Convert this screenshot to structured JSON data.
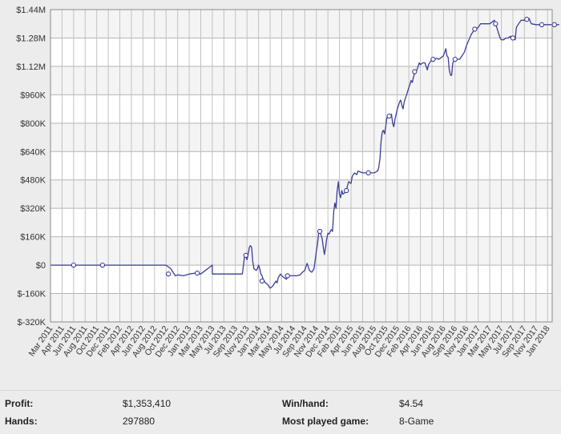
{
  "chart_data": {
    "type": "line",
    "ylim": [
      -320000,
      1440000
    ],
    "y_ticks": [
      {
        "value": 1440000,
        "label": "$1.44M"
      },
      {
        "value": 1280000,
        "label": "$1.28M"
      },
      {
        "value": 1120000,
        "label": "$1.12M"
      },
      {
        "value": 960000,
        "label": "$960K"
      },
      {
        "value": 800000,
        "label": "$800K"
      },
      {
        "value": 640000,
        "label": "$640K"
      },
      {
        "value": 480000,
        "label": "$480K"
      },
      {
        "value": 320000,
        "label": "$320K"
      },
      {
        "value": 160000,
        "label": "$160K"
      },
      {
        "value": 0,
        "label": "$0"
      },
      {
        "value": -160000,
        "label": "$-160K"
      },
      {
        "value": -320000,
        "label": "$-320K"
      }
    ],
    "x_ticks": [
      "Mar 2011",
      "Apr 2011",
      "Jun 2011",
      "Aug 2011",
      "Oct 2011",
      "Dec 2011",
      "Feb 2012",
      "Apr 2012",
      "Jun 2012",
      "Aug 2012",
      "Oct 2012",
      "Dec 2012",
      "Jan 2013",
      "Mar 2013",
      "May 2013",
      "Jul 2013",
      "Sep 2013",
      "Nov 2013",
      "Jan 2014",
      "Mar 2014",
      "May 2014",
      "Jul 2014",
      "Sep 2014",
      "Nov 2014",
      "Dec 2014",
      "Feb 2015",
      "Apr 2015",
      "Jun 2015",
      "Aug 2015",
      "Oct 2015",
      "Dec 2015",
      "Feb 2016",
      "Apr 2016",
      "Jun 2016",
      "Aug 2016",
      "Sep 2016",
      "Nov 2016",
      "Jan 2017",
      "Mar 2017",
      "May 2017",
      "Jul 2017",
      "Sep 2017",
      "Nov 2017",
      "Jan 2018"
    ],
    "grid": true,
    "series": [
      {
        "color": "#3a3d99",
        "points": [
          [
            0,
            0
          ],
          [
            14,
            0
          ],
          [
            4,
            0
          ],
          [
            8,
            0
          ],
          [
            9,
            0
          ],
          [
            9.5,
            0
          ],
          [
            10,
            0
          ],
          [
            10.4,
            -20000
          ],
          [
            10.6,
            -40000
          ],
          [
            10.8,
            -60000
          ],
          [
            11,
            -55000
          ],
          [
            11.5,
            -60000
          ],
          [
            12,
            -50000
          ],
          [
            12.5,
            -45000
          ],
          [
            13,
            -50000
          ],
          [
            14,
            -50000
          ],
          [
            15,
            -50000
          ],
          [
            16,
            -50000
          ],
          [
            16.6,
            -50000
          ],
          [
            16.8,
            55000
          ],
          [
            16.9,
            50000
          ],
          [
            17,
            30000
          ],
          [
            17.1,
            60000
          ],
          [
            17.2,
            100000
          ],
          [
            17.3,
            110000
          ],
          [
            17.4,
            100000
          ],
          [
            17.5,
            20000
          ],
          [
            17.6,
            -20000
          ],
          [
            17.8,
            -30000
          ],
          [
            17.9,
            -20000
          ],
          [
            18,
            0
          ],
          [
            18.1,
            -20000
          ],
          [
            18.2,
            -50000
          ],
          [
            18.3,
            -60000
          ],
          [
            18.4,
            -80000
          ],
          [
            18.5,
            -90000
          ],
          [
            18.6,
            -100000
          ],
          [
            18.8,
            -110000
          ],
          [
            18.9,
            -120000
          ],
          [
            19,
            -130000
          ],
          [
            19.2,
            -120000
          ],
          [
            19.3,
            -110000
          ],
          [
            19.5,
            -90000
          ],
          [
            19.6,
            -100000
          ],
          [
            19.7,
            -70000
          ],
          [
            19.8,
            -60000
          ],
          [
            19.9,
            -50000
          ],
          [
            20,
            -60000
          ],
          [
            20.2,
            -70000
          ],
          [
            20.4,
            -80000
          ],
          [
            20.6,
            -60000
          ],
          [
            21,
            -60000
          ],
          [
            21.3,
            -60000
          ],
          [
            21.6,
            -55000
          ],
          [
            21.8,
            -40000
          ],
          [
            22,
            -30000
          ],
          [
            22.2,
            10000
          ],
          [
            22.3,
            -10000
          ],
          [
            22.4,
            -30000
          ],
          [
            22.6,
            -40000
          ],
          [
            22.8,
            -20000
          ],
          [
            23,
            80000
          ],
          [
            23.1,
            120000
          ],
          [
            23.2,
            180000
          ],
          [
            23.3,
            190000
          ],
          [
            23.4,
            170000
          ],
          [
            23.5,
            150000
          ],
          [
            23.6,
            100000
          ],
          [
            23.7,
            60000
          ],
          [
            23.8,
            100000
          ],
          [
            23.9,
            150000
          ],
          [
            24,
            180000
          ],
          [
            24.1,
            175000
          ],
          [
            24.2,
            190000
          ],
          [
            24.3,
            200000
          ],
          [
            24.4,
            190000
          ],
          [
            24.5,
            300000
          ],
          [
            24.6,
            350000
          ],
          [
            24.7,
            320000
          ],
          [
            24.8,
            420000
          ],
          [
            24.9,
            470000
          ],
          [
            25,
            400000
          ],
          [
            25.1,
            380000
          ],
          [
            25.2,
            420000
          ],
          [
            25.3,
            400000
          ],
          [
            25.5,
            410000
          ],
          [
            25.6,
            420000
          ],
          [
            25.7,
            450000
          ],
          [
            25.8,
            470000
          ],
          [
            26,
            460000
          ],
          [
            26.1,
            500000
          ],
          [
            26.3,
            520000
          ],
          [
            26.5,
            510000
          ],
          [
            26.6,
            530000
          ],
          [
            27,
            520000
          ],
          [
            27.5,
            520000
          ],
          [
            28,
            520000
          ],
          [
            28.3,
            530000
          ],
          [
            28.4,
            550000
          ],
          [
            28.5,
            600000
          ],
          [
            28.6,
            700000
          ],
          [
            28.7,
            750000
          ],
          [
            28.8,
            760000
          ],
          [
            28.9,
            740000
          ],
          [
            29,
            780000
          ],
          [
            29.1,
            830000
          ],
          [
            29.3,
            840000
          ],
          [
            29.5,
            850000
          ],
          [
            29.6,
            800000
          ],
          [
            29.7,
            780000
          ],
          [
            29.8,
            820000
          ],
          [
            29.9,
            850000
          ],
          [
            30,
            880000
          ],
          [
            30.1,
            900000
          ],
          [
            30.2,
            920000
          ],
          [
            30.3,
            930000
          ],
          [
            30.4,
            900000
          ],
          [
            30.5,
            880000
          ],
          [
            30.6,
            920000
          ],
          [
            30.7,
            940000
          ],
          [
            30.8,
            960000
          ],
          [
            30.9,
            980000
          ],
          [
            31,
            1000000
          ],
          [
            31.1,
            1020000
          ],
          [
            31.2,
            1040000
          ],
          [
            31.3,
            1030000
          ],
          [
            31.4,
            1060000
          ],
          [
            31.5,
            1080000
          ],
          [
            31.6,
            1090000
          ],
          [
            31.7,
            1100000
          ],
          [
            31.8,
            1120000
          ],
          [
            31.9,
            1140000
          ],
          [
            32,
            1130000
          ],
          [
            32.2,
            1140000
          ],
          [
            32.4,
            1140000
          ],
          [
            32.6,
            1100000
          ],
          [
            32.7,
            1130000
          ],
          [
            32.9,
            1150000
          ],
          [
            33,
            1160000
          ],
          [
            33.2,
            1160000
          ],
          [
            33.4,
            1165000
          ],
          [
            33.6,
            1160000
          ],
          [
            33.8,
            1170000
          ],
          [
            34,
            1180000
          ],
          [
            34.1,
            1200000
          ],
          [
            34.2,
            1220000
          ],
          [
            34.3,
            1180000
          ],
          [
            34.4,
            1170000
          ],
          [
            34.5,
            1100000
          ],
          [
            34.6,
            1070000
          ],
          [
            34.7,
            1070000
          ],
          [
            34.8,
            1140000
          ],
          [
            34.9,
            1150000
          ],
          [
            35,
            1160000
          ],
          [
            35.2,
            1160000
          ],
          [
            35.4,
            1160000
          ],
          [
            35.6,
            1180000
          ],
          [
            35.8,
            1200000
          ],
          [
            36,
            1240000
          ],
          [
            36.2,
            1270000
          ],
          [
            36.4,
            1300000
          ],
          [
            36.6,
            1320000
          ],
          [
            36.8,
            1330000
          ],
          [
            37,
            1340000
          ],
          [
            37.2,
            1360000
          ],
          [
            37.4,
            1360000
          ],
          [
            37.6,
            1360000
          ],
          [
            37.8,
            1360000
          ],
          [
            38,
            1360000
          ],
          [
            38.2,
            1370000
          ],
          [
            38.4,
            1380000
          ],
          [
            38.5,
            1360000
          ],
          [
            38.6,
            1340000
          ],
          [
            38.7,
            1320000
          ],
          [
            38.8,
            1300000
          ],
          [
            38.9,
            1280000
          ],
          [
            39,
            1270000
          ],
          [
            39.2,
            1270000
          ],
          [
            39.4,
            1280000
          ],
          [
            39.6,
            1280000
          ],
          [
            39.8,
            1290000
          ],
          [
            40,
            1280000
          ],
          [
            40.2,
            1270000
          ],
          [
            40.3,
            1340000
          ],
          [
            40.5,
            1360000
          ],
          [
            40.7,
            1380000
          ],
          [
            41,
            1380000
          ],
          [
            41.2,
            1385000
          ],
          [
            41.4,
            1390000
          ],
          [
            41.6,
            1360000
          ],
          [
            42,
            1355000
          ],
          [
            42.5,
            1355000
          ],
          [
            43,
            1355000
          ],
          [
            43.5,
            1355000
          ],
          [
            44,
            1355000
          ]
        ],
        "markers": [
          [
            2,
            0
          ],
          [
            4.5,
            0
          ],
          [
            10.2,
            -50000
          ],
          [
            12.7,
            -45000
          ],
          [
            16.9,
            55000
          ],
          [
            18.3,
            -90000
          ],
          [
            20.5,
            -60000
          ],
          [
            23.3,
            190000
          ],
          [
            25.6,
            420000
          ],
          [
            27.5,
            520000
          ],
          [
            29.3,
            840000
          ],
          [
            31.5,
            1090000
          ],
          [
            33.1,
            1160000
          ],
          [
            35,
            1160000
          ],
          [
            36.7,
            1330000
          ],
          [
            38.5,
            1360000
          ],
          [
            40,
            1280000
          ],
          [
            41.2,
            1385000
          ],
          [
            42.5,
            1355000
          ],
          [
            43.6,
            1355000
          ]
        ]
      }
    ]
  },
  "stats": {
    "profit_label": "Profit:",
    "profit_value": "$1,353,410",
    "hands_label": "Hands:",
    "hands_value": "297880",
    "winhand_label": "Win/hand:",
    "winhand_value": "$4.54",
    "game_label": "Most played game:",
    "game_value": "8-Game"
  }
}
